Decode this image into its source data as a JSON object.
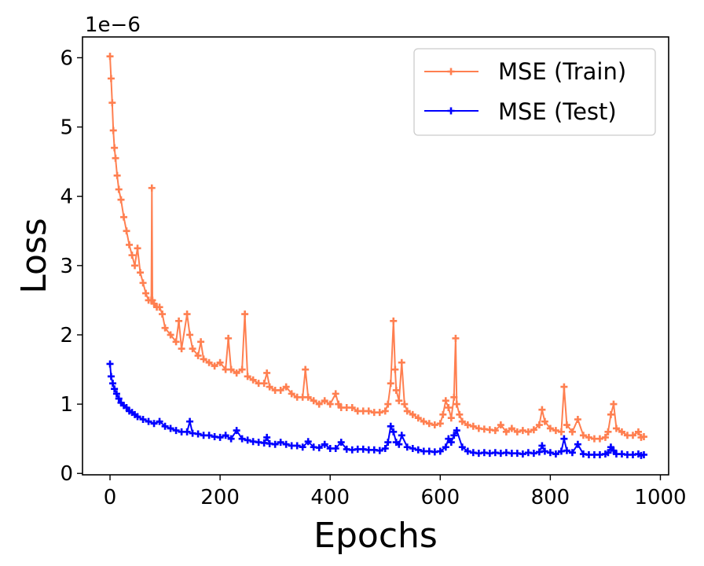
{
  "chart_data": {
    "type": "line",
    "xlabel": "Epochs",
    "ylabel": "Loss",
    "offset_text": "1e−6",
    "xlim": [
      -50,
      1015
    ],
    "ylim": [
      -0.02,
      6.3
    ],
    "x_ticks": [
      0,
      200,
      400,
      600,
      800,
      1000
    ],
    "x_tick_labels": [
      "0",
      "200",
      "400",
      "600",
      "800",
      "1000"
    ],
    "y_ticks": [
      0,
      1,
      2,
      3,
      4,
      5,
      6
    ],
    "y_tick_labels": [
      "0",
      "1",
      "2",
      "3",
      "4",
      "5",
      "6"
    ],
    "legend_position": "top-right",
    "marker": "plus",
    "grid": false,
    "series": [
      {
        "name": "MSE (Train)",
        "color": "#ff7f50",
        "x": [
          0,
          2,
          4,
          6,
          8,
          10,
          13,
          16,
          20,
          25,
          30,
          35,
          40,
          45,
          50,
          55,
          60,
          65,
          70,
          75,
          76,
          77,
          80,
          85,
          90,
          95,
          100,
          110,
          120,
          125,
          130,
          140,
          145,
          150,
          160,
          165,
          170,
          180,
          190,
          200,
          210,
          215,
          220,
          230,
          240,
          245,
          250,
          260,
          270,
          280,
          285,
          290,
          300,
          310,
          320,
          330,
          340,
          350,
          355,
          360,
          370,
          380,
          390,
          400,
          410,
          415,
          420,
          430,
          440,
          450,
          460,
          470,
          480,
          490,
          500,
          505,
          510,
          515,
          518,
          520,
          525,
          530,
          535,
          540,
          550,
          560,
          570,
          580,
          590,
          600,
          605,
          610,
          615,
          620,
          625,
          628,
          630,
          635,
          640,
          650,
          660,
          670,
          680,
          690,
          700,
          710,
          720,
          730,
          740,
          750,
          760,
          770,
          780,
          785,
          790,
          800,
          810,
          820,
          825,
          830,
          840,
          850,
          860,
          870,
          880,
          890,
          900,
          905,
          910,
          915,
          920,
          930,
          940,
          950,
          960,
          965,
          970
        ],
        "y": [
          6.02,
          5.7,
          5.35,
          4.95,
          4.7,
          4.55,
          4.3,
          4.1,
          3.95,
          3.7,
          3.5,
          3.3,
          3.15,
          3.0,
          3.25,
          2.9,
          2.75,
          2.6,
          2.5,
          2.5,
          4.12,
          2.5,
          2.45,
          2.4,
          2.4,
          2.3,
          2.1,
          2.0,
          1.9,
          2.2,
          1.8,
          2.3,
          2.0,
          1.8,
          1.7,
          1.9,
          1.65,
          1.6,
          1.55,
          1.6,
          1.5,
          1.95,
          1.5,
          1.45,
          1.5,
          2.3,
          1.4,
          1.35,
          1.3,
          1.3,
          1.45,
          1.25,
          1.2,
          1.2,
          1.25,
          1.15,
          1.1,
          1.1,
          1.5,
          1.1,
          1.05,
          1.0,
          1.05,
          1.0,
          1.15,
          1.0,
          0.95,
          0.95,
          0.95,
          0.9,
          0.9,
          0.9,
          0.88,
          0.88,
          0.9,
          1.0,
          1.3,
          2.2,
          1.5,
          1.2,
          1.05,
          1.6,
          1.0,
          0.9,
          0.85,
          0.8,
          0.75,
          0.72,
          0.7,
          0.72,
          0.85,
          1.05,
          0.95,
          0.8,
          1.1,
          1.95,
          1.0,
          0.85,
          0.75,
          0.7,
          0.68,
          0.65,
          0.64,
          0.63,
          0.62,
          0.7,
          0.6,
          0.65,
          0.6,
          0.62,
          0.6,
          0.63,
          0.7,
          0.92,
          0.75,
          0.65,
          0.62,
          0.6,
          1.25,
          0.7,
          0.6,
          0.78,
          0.55,
          0.52,
          0.5,
          0.5,
          0.52,
          0.6,
          0.85,
          1.0,
          0.65,
          0.6,
          0.55,
          0.55,
          0.6,
          0.52,
          0.53
        ]
      },
      {
        "name": "MSE (Test)",
        "color": "#0000ff",
        "x": [
          0,
          2,
          5,
          8,
          12,
          16,
          20,
          25,
          30,
          35,
          40,
          45,
          50,
          60,
          70,
          80,
          90,
          100,
          110,
          120,
          130,
          140,
          145,
          150,
          160,
          170,
          180,
          190,
          200,
          210,
          220,
          230,
          240,
          250,
          260,
          270,
          280,
          285,
          290,
          300,
          310,
          320,
          330,
          340,
          350,
          360,
          370,
          380,
          390,
          400,
          410,
          420,
          430,
          440,
          450,
          460,
          470,
          480,
          490,
          500,
          505,
          510,
          515,
          520,
          525,
          530,
          540,
          550,
          560,
          570,
          580,
          590,
          600,
          610,
          615,
          620,
          625,
          630,
          640,
          650,
          660,
          670,
          680,
          690,
          700,
          710,
          720,
          730,
          740,
          750,
          760,
          770,
          780,
          785,
          790,
          800,
          810,
          820,
          825,
          830,
          840,
          850,
          860,
          870,
          880,
          890,
          900,
          905,
          910,
          915,
          920,
          930,
          940,
          950,
          960,
          965,
          970
        ],
        "y": [
          1.58,
          1.4,
          1.3,
          1.22,
          1.15,
          1.08,
          1.02,
          0.98,
          0.95,
          0.9,
          0.88,
          0.85,
          0.82,
          0.78,
          0.75,
          0.72,
          0.75,
          0.68,
          0.65,
          0.62,
          0.6,
          0.6,
          0.75,
          0.58,
          0.57,
          0.55,
          0.55,
          0.53,
          0.52,
          0.55,
          0.5,
          0.62,
          0.5,
          0.48,
          0.46,
          0.45,
          0.44,
          0.52,
          0.43,
          0.42,
          0.45,
          0.42,
          0.4,
          0.4,
          0.38,
          0.46,
          0.38,
          0.37,
          0.42,
          0.36,
          0.36,
          0.45,
          0.35,
          0.34,
          0.35,
          0.35,
          0.34,
          0.34,
          0.33,
          0.36,
          0.45,
          0.68,
          0.6,
          0.45,
          0.42,
          0.55,
          0.38,
          0.36,
          0.34,
          0.32,
          0.32,
          0.31,
          0.32,
          0.38,
          0.5,
          0.45,
          0.55,
          0.62,
          0.38,
          0.32,
          0.3,
          0.29,
          0.3,
          0.29,
          0.3,
          0.29,
          0.3,
          0.29,
          0.29,
          0.28,
          0.3,
          0.29,
          0.31,
          0.4,
          0.32,
          0.3,
          0.28,
          0.32,
          0.5,
          0.33,
          0.3,
          0.42,
          0.28,
          0.27,
          0.27,
          0.27,
          0.28,
          0.3,
          0.38,
          0.33,
          0.28,
          0.28,
          0.27,
          0.27,
          0.28,
          0.26,
          0.27
        ]
      }
    ]
  }
}
